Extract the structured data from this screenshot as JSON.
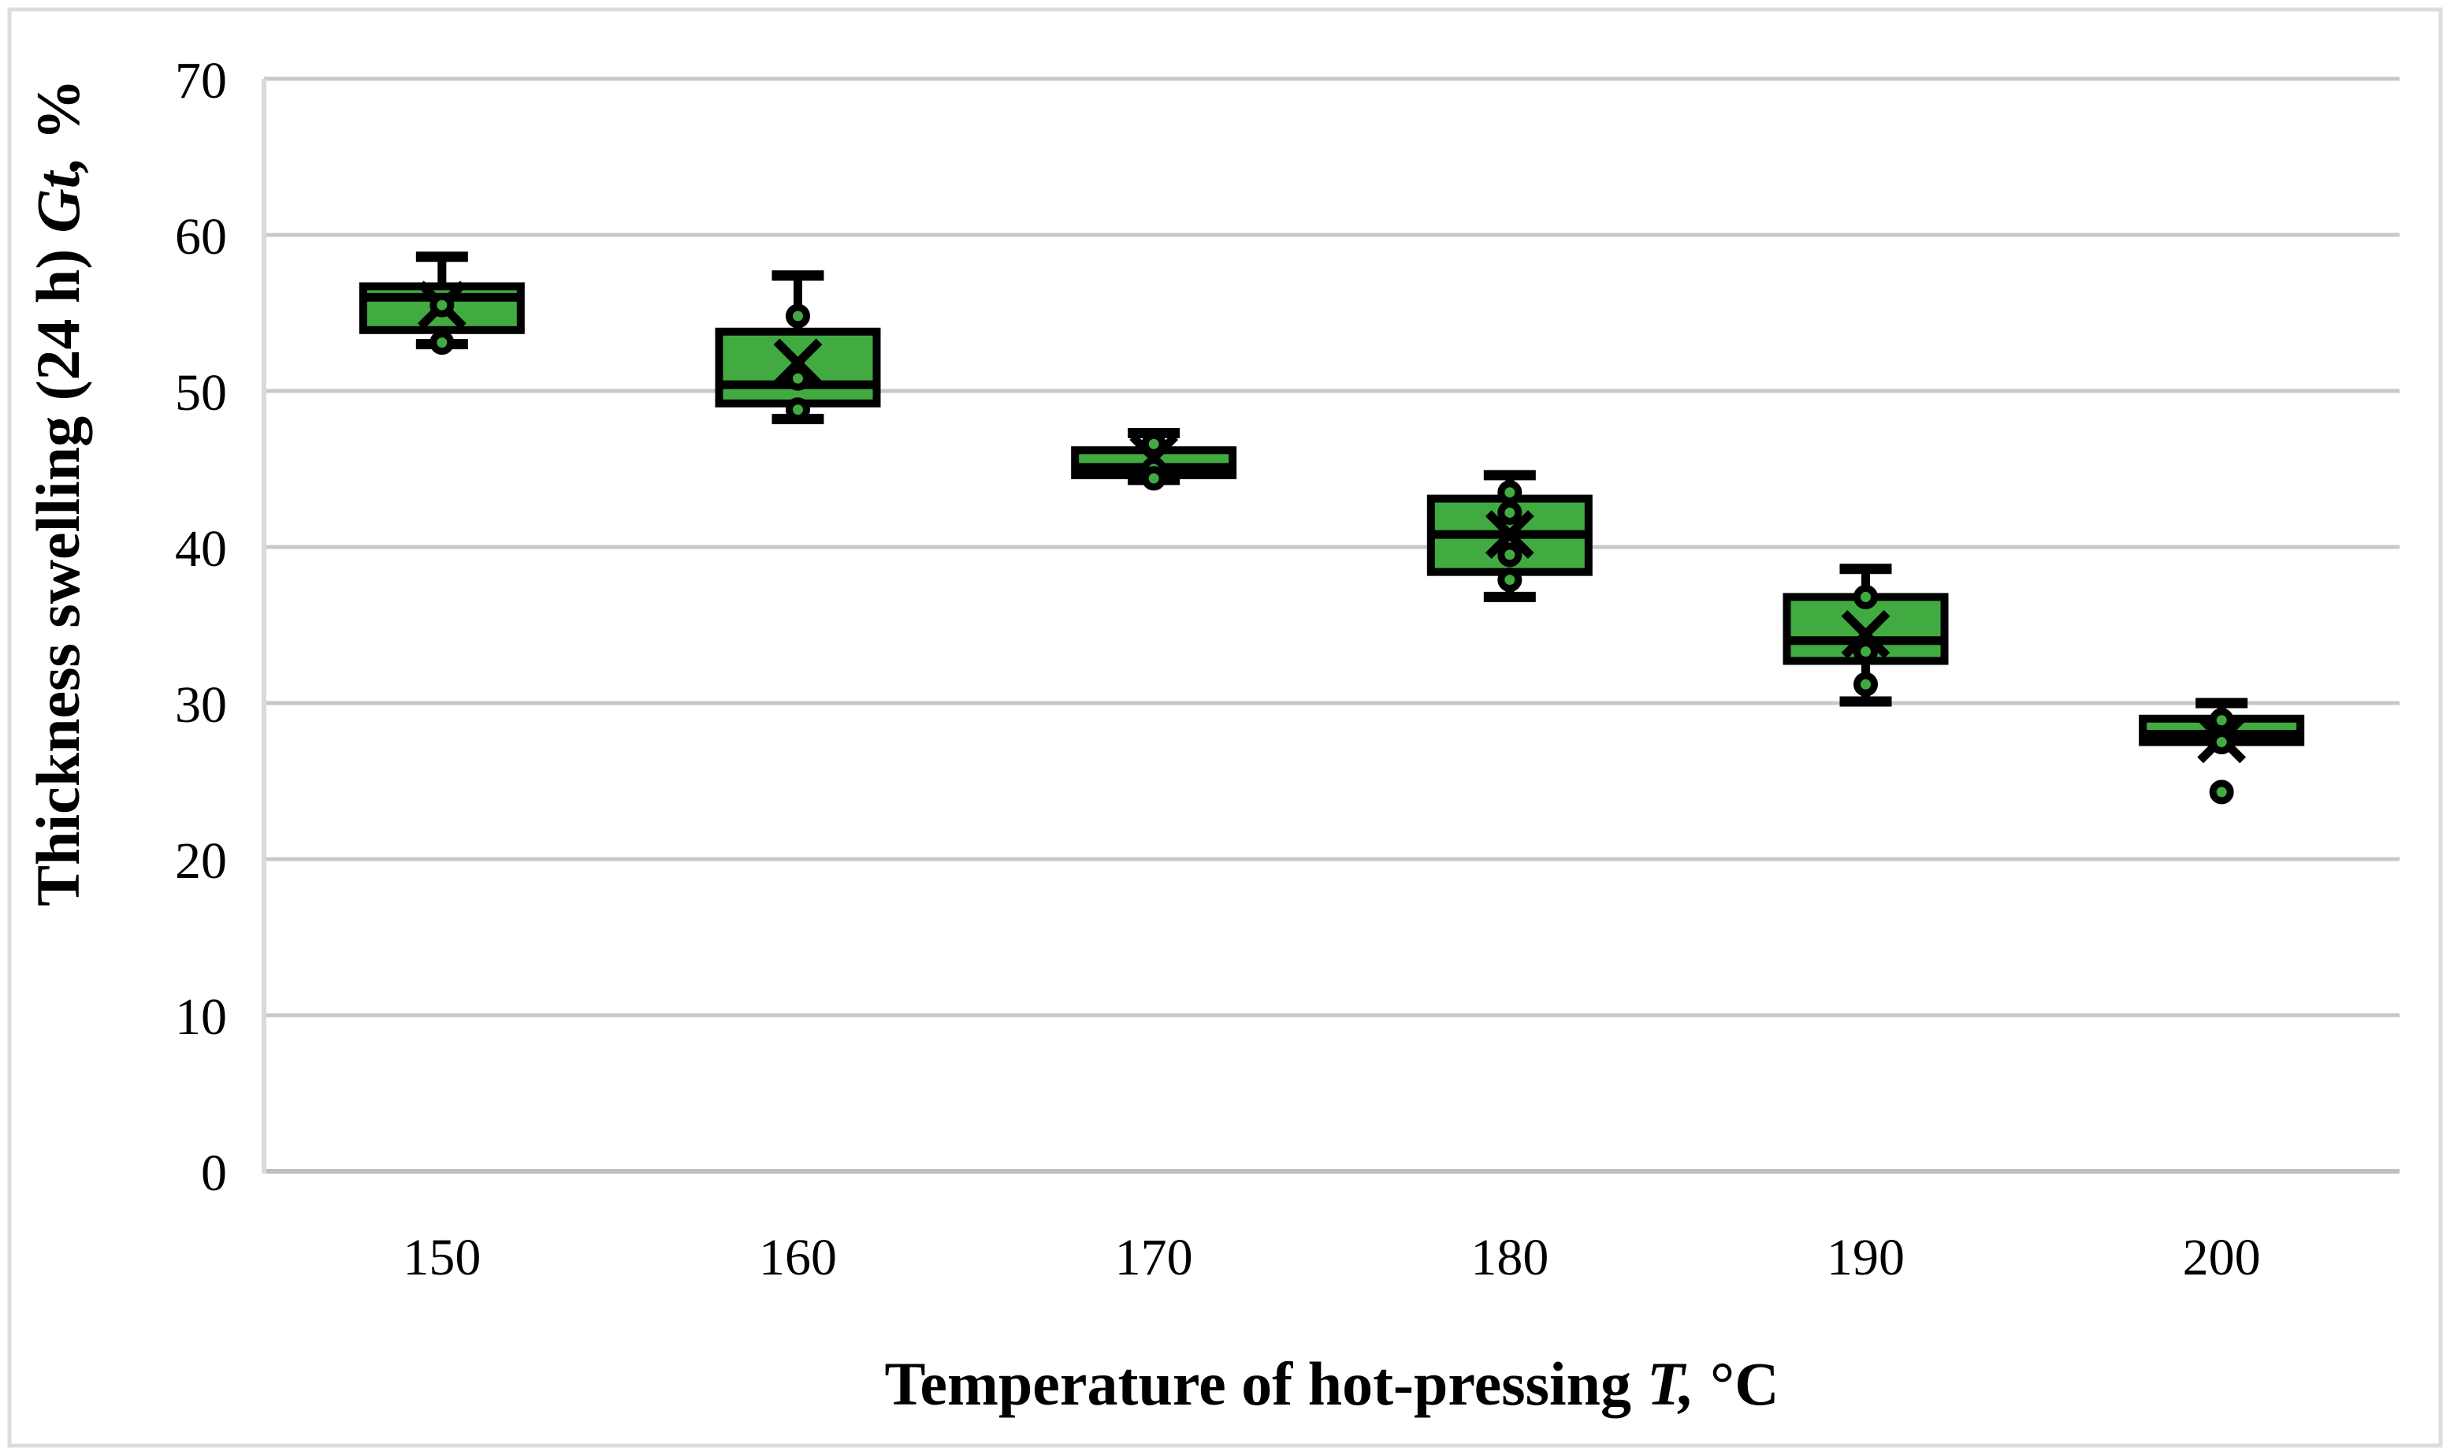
{
  "figure": {
    "background_color": "#ffffff",
    "border_color": "#dcdcdc"
  },
  "chart_data": {
    "type": "boxplot",
    "title": "",
    "xlabel_parts": {
      "main": "Temperature of hot-pressing",
      "italic": "T,",
      "suffix": "°C"
    },
    "ylabel_parts": {
      "main": "Thickness swelling (24 h)",
      "italic": "Gt,",
      "suffix": "%"
    },
    "categories": [
      "150",
      "160",
      "170",
      "180",
      "190",
      "200"
    ],
    "y_axis": {
      "min": 0,
      "max": 70,
      "step": 10,
      "ticks": [
        70,
        60,
        50,
        40,
        30,
        20,
        10,
        0
      ]
    },
    "grid": "horizontal",
    "legend": "none",
    "series": [
      {
        "category": "150",
        "whisker_low": 53.0,
        "q1": 53.9,
        "median": 56.0,
        "q3": 56.7,
        "whisker_high": 58.6,
        "mean": 55.5,
        "points": [
          55.5,
          53.1
        ]
      },
      {
        "category": "160",
        "whisker_low": 48.2,
        "q1": 49.2,
        "median": 50.4,
        "q3": 53.8,
        "whisker_high": 57.4,
        "mean": 51.8,
        "points": [
          54.8,
          50.8,
          48.8
        ]
      },
      {
        "category": "170",
        "whisker_low": 44.3,
        "q1": 44.6,
        "median": 45.1,
        "q3": 46.2,
        "whisker_high": 47.3,
        "mean": 45.7,
        "points": [
          46.6,
          45.0,
          44.4
        ]
      },
      {
        "category": "180",
        "whisker_low": 36.8,
        "q1": 38.4,
        "median": 40.8,
        "q3": 43.1,
        "whisker_high": 44.6,
        "mean": 40.8,
        "points": [
          43.5,
          42.2,
          39.5,
          37.9
        ]
      },
      {
        "category": "190",
        "whisker_low": 30.1,
        "q1": 32.7,
        "median": 34.0,
        "q3": 36.8,
        "whisker_high": 38.6,
        "mean": 34.4,
        "points": [
          36.8,
          33.3,
          31.2
        ]
      },
      {
        "category": "200",
        "whisker_low": null,
        "q1": 27.5,
        "median": 28.0,
        "q3": 29.0,
        "whisker_high": 30.0,
        "mean": 27.7,
        "points": [
          28.9,
          27.5,
          24.3
        ]
      }
    ],
    "colors": {
      "box_fill": "#41ab41",
      "box_stroke": "#000000",
      "marker_fill": "#41ab41",
      "marker_stroke": "#000000",
      "gridline": "#c8c8c8",
      "zero_line": "#bfbfbf",
      "y_axis_line": "#d9d9d9"
    }
  }
}
